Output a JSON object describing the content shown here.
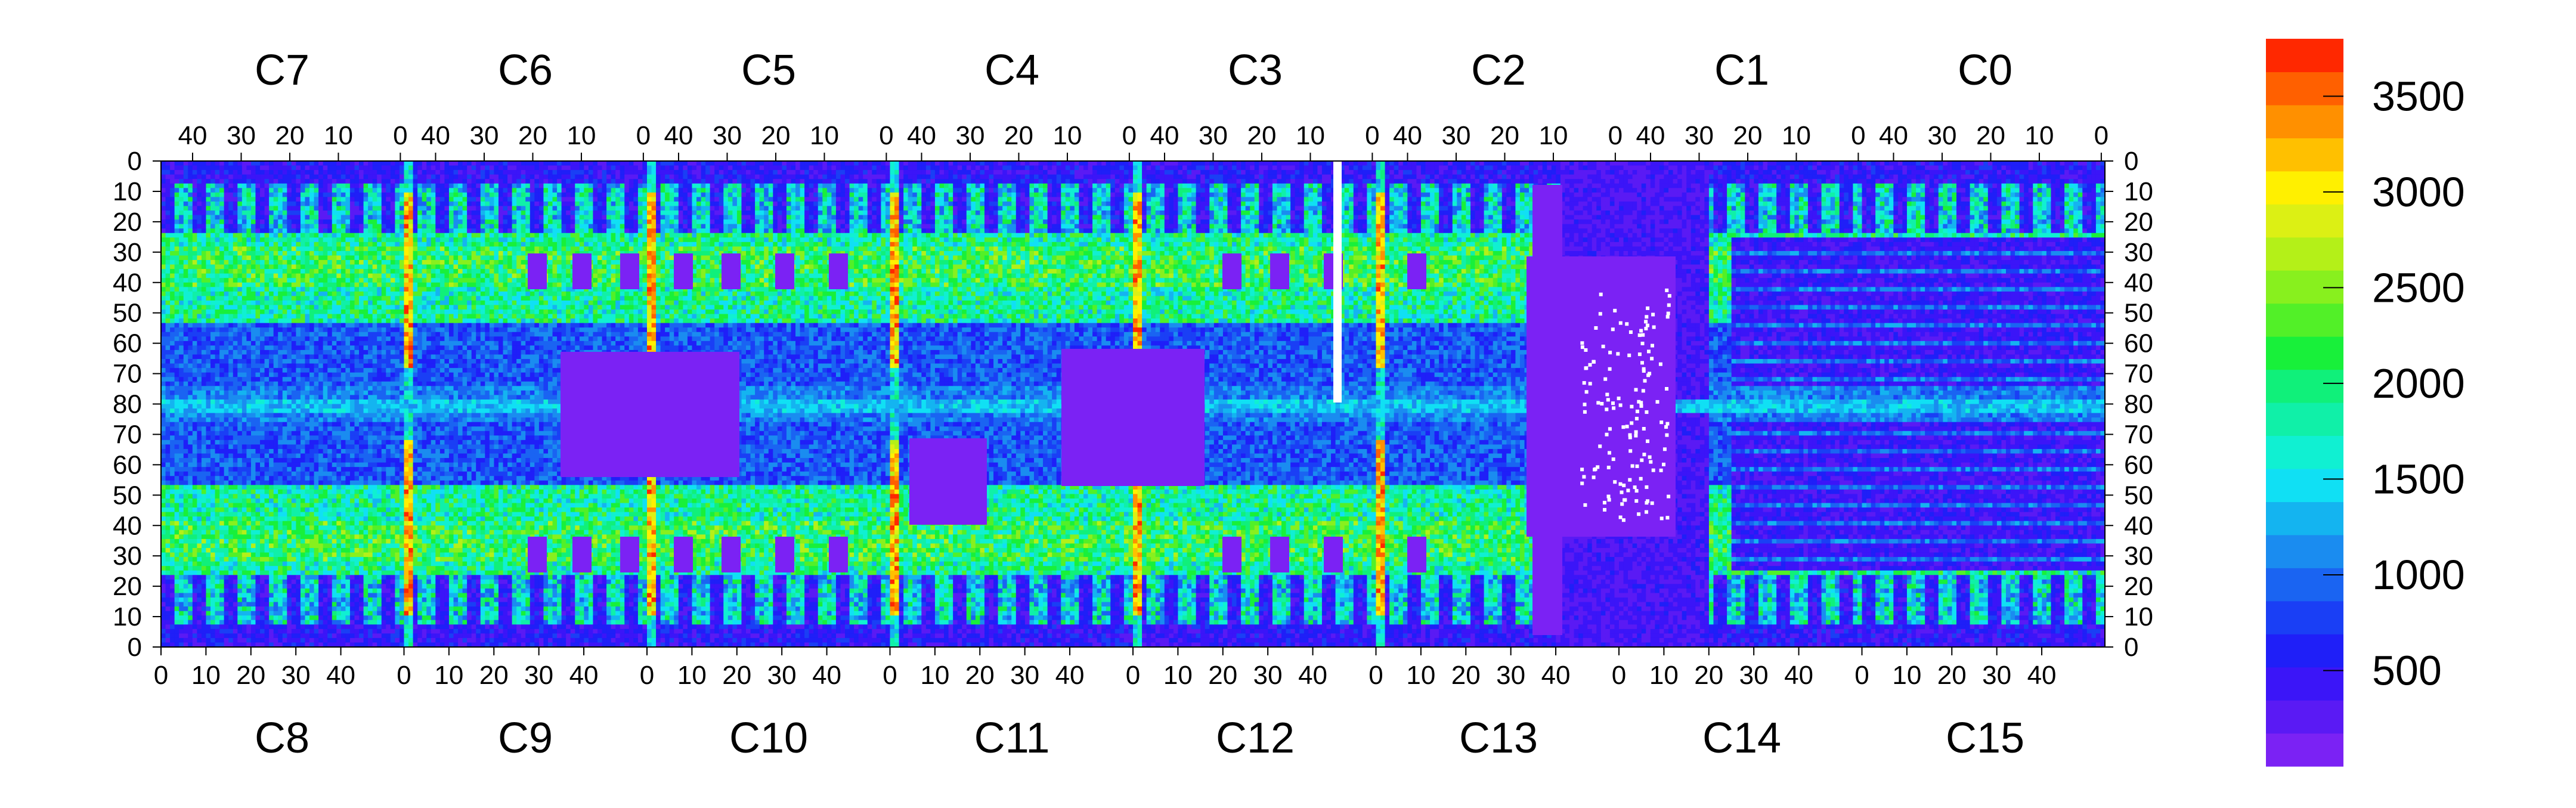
{
  "chart_data": {
    "type": "heatmap",
    "title": "",
    "xlabel": "",
    "ylabel": "",
    "top_sectors": [
      "C7",
      "C6",
      "C5",
      "C4",
      "C3",
      "C2",
      "C1",
      "C0"
    ],
    "bottom_sectors": [
      "C8",
      "C9",
      "C10",
      "C11",
      "C12",
      "C13",
      "C14",
      "C15"
    ],
    "top_tick_labels": [
      "40",
      "30",
      "20",
      "10",
      "0"
    ],
    "bottom_tick_labels": [
      "0",
      "10",
      "20",
      "30",
      "40"
    ],
    "y_tick_labels": [
      "0",
      "10",
      "20",
      "30",
      "40",
      "50",
      "60",
      "70",
      "80",
      "70",
      "60",
      "50",
      "40",
      "30",
      "20",
      "10",
      "0"
    ],
    "columns_per_sector": 54,
    "rows": 108,
    "legend_ticks": [
      "3500",
      "3000",
      "2500",
      "2000",
      "1500",
      "1000",
      "500"
    ],
    "zrange": [
      0,
      3800
    ],
    "palette": [
      "#7b22f4",
      "#5a1af4",
      "#3b15f8",
      "#1f1ff8",
      "#1a3ff5",
      "#1a64f2",
      "#1a8cf0",
      "#14b4f0",
      "#10e0f4",
      "#10f0d2",
      "#10f0a8",
      "#10f07a",
      "#18f03a",
      "#52f028",
      "#88f01e",
      "#b4f018",
      "#dcf014",
      "#fff000",
      "#ffc000",
      "#ff9000",
      "#ff6000",
      "#ff2800"
    ],
    "colors": {
      "background": "#7b22f4",
      "dead_channel": "#ffffff"
    }
  }
}
